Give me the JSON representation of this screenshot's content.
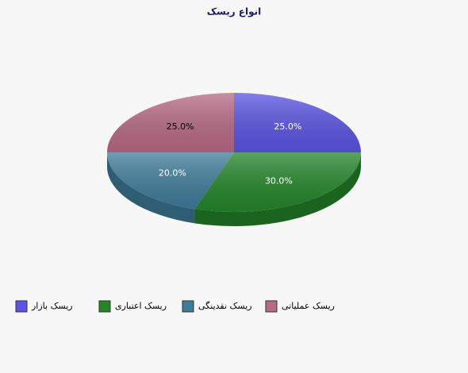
{
  "chart_data": {
    "type": "pie",
    "title": "انواع ریسک",
    "categories": [
      "ریسک بازار",
      "ریسک اعتباری",
      "ریسک نقدینگی",
      "ریسک عملیاتی"
    ],
    "values": [
      25,
      30,
      20,
      25
    ],
    "value_labels": [
      "25.0%",
      "30.0%",
      "20.0%",
      "25.0%"
    ],
    "colors": [
      "#5a54e0",
      "#24852a",
      "#3f7c9a",
      "#b76a84"
    ]
  }
}
